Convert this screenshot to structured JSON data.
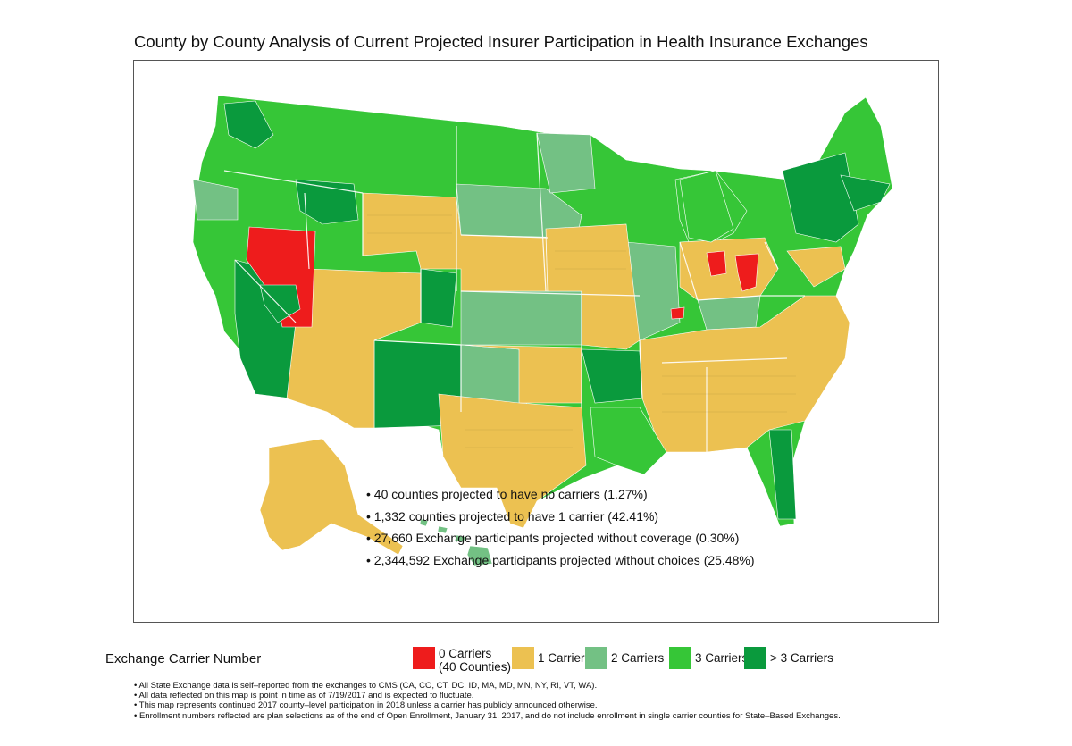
{
  "title": "County by County Analysis of Current Projected Insurer Participation in Health Insurance Exchanges",
  "stats": [
    "• 40 counties projected to have no carriers (1.27%)",
    "• 1,332 counties projected to have 1 carrier (42.41%)",
    "• 27,660 Exchange participants projected without coverage (0.30%)",
    "• 2,344,592 Exchange participants projected without choices (25.48%)"
  ],
  "legend": {
    "title": "Exchange Carrier Number",
    "items": [
      {
        "label": "0 Carriers",
        "sublabel": "(40 Counties)",
        "color": "#ee1c1c"
      },
      {
        "label": "1 Carrier",
        "sublabel": "",
        "color": "#ecc151"
      },
      {
        "label": "2 Carriers",
        "sublabel": "",
        "color": "#73c184"
      },
      {
        "label": "3 Carriers",
        "sublabel": "",
        "color": "#36c637"
      },
      {
        "label": "> 3 Carriers",
        "sublabel": "",
        "color": "#0a9a3d"
      }
    ]
  },
  "notes": [
    "• All State Exchange data is self–reported from the exchanges to CMS (CA, CO, CT, DC, ID, MA, MD, MN, NY, RI, VT, WA).",
    "• All data reflected on this map is point in time as of 7/19/2017 and is expected to fluctuate.",
    "• This map represents continued 2017 county–level participation in 2018 unless a carrier has publicly announced otherwise.",
    "• Enrollment numbers reflected are plan selections as of the end of Open Enrollment, January 31, 2017, and do not include enrollment in single carrier counties for State–Based Exchanges."
  ],
  "map": {
    "colors": {
      "zero": "#ee1c1c",
      "one": "#ecc151",
      "two": "#73c184",
      "three": "#36c637",
      "four_plus": "#0a9a3d"
    }
  }
}
